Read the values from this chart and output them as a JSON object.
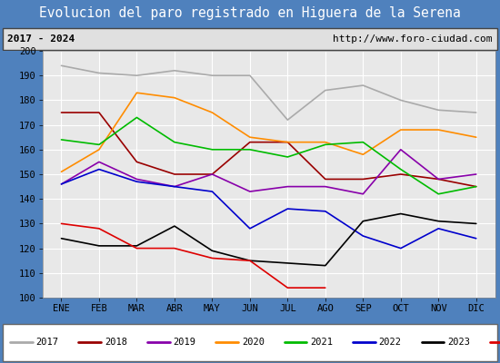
{
  "title": "Evolucion del paro registrado en Higuera de la Serena",
  "subtitle_left": "2017 - 2024",
  "subtitle_right": "http://www.foro-ciudad.com",
  "x_labels": [
    "ENE",
    "FEB",
    "MAR",
    "ABR",
    "MAY",
    "JUN",
    "JUL",
    "AGO",
    "SEP",
    "OCT",
    "NOV",
    "DIC"
  ],
  "ylim": [
    100,
    200
  ],
  "yticks": [
    100,
    110,
    120,
    130,
    140,
    150,
    160,
    170,
    180,
    190,
    200
  ],
  "series": {
    "2017": {
      "color": "#aaaaaa",
      "data": [
        194,
        191,
        190,
        192,
        190,
        190,
        172,
        184,
        186,
        180,
        176,
        175
      ]
    },
    "2018": {
      "color": "#990000",
      "data": [
        175,
        175,
        155,
        150,
        150,
        163,
        163,
        148,
        148,
        150,
        148,
        145
      ]
    },
    "2019": {
      "color": "#8800aa",
      "data": [
        146,
        155,
        148,
        145,
        150,
        143,
        145,
        145,
        142,
        160,
        148,
        150
      ]
    },
    "2020": {
      "color": "#ff8c00",
      "data": [
        151,
        160,
        183,
        181,
        175,
        165,
        163,
        163,
        158,
        168,
        168,
        165
      ]
    },
    "2021": {
      "color": "#00bb00",
      "data": [
        164,
        162,
        173,
        163,
        160,
        160,
        157,
        162,
        163,
        152,
        142,
        145
      ]
    },
    "2022": {
      "color": "#0000cc",
      "data": [
        146,
        152,
        147,
        145,
        143,
        128,
        136,
        135,
        125,
        120,
        128,
        124
      ]
    },
    "2023": {
      "color": "#000000",
      "data": [
        124,
        121,
        121,
        129,
        119,
        115,
        114,
        113,
        131,
        134,
        131,
        130
      ]
    },
    "2024": {
      "color": "#dd0000",
      "data": [
        130,
        128,
        120,
        120,
        116,
        115,
        104,
        104,
        null,
        null,
        null,
        null
      ]
    }
  },
  "title_bg_color": "#4f81bd",
  "title_font_color": "white",
  "subtitle_bg_color": "#e0e0e0",
  "plot_bg_color": "#e8e8e8",
  "outer_bg_color": "#4f81bd",
  "grid_color": "white",
  "title_fontsize": 10.5,
  "subtitle_fontsize": 8,
  "tick_fontsize": 7.5,
  "legend_fontsize": 7.5,
  "line_width": 1.2
}
